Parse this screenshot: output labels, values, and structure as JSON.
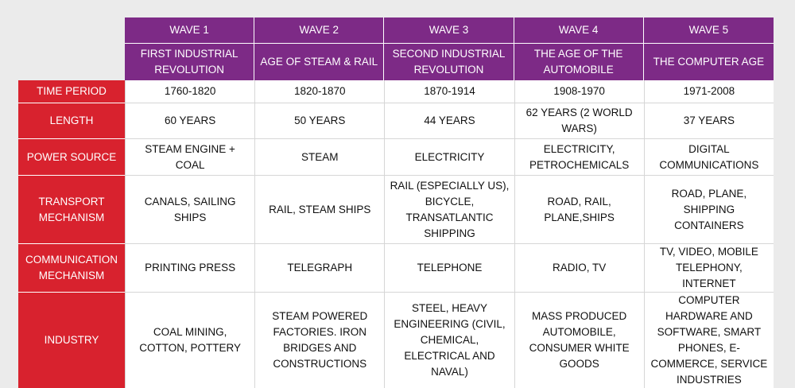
{
  "header": {
    "waves": [
      "WAVE 1",
      "WAVE 2",
      "WAVE 3",
      "WAVE 4",
      "WAVE 5"
    ],
    "eras": [
      "FIRST INDUSTRIAL REVOLUTION",
      "AGE OF STEAM & RAIL",
      "SECOND INDUSTRIAL REVOLUTION",
      "THE AGE OF THE AUTOMOBILE",
      "THE COMPUTER AGE"
    ]
  },
  "rows": [
    {
      "label": "TIME PERIOD",
      "cells": [
        "1760-1820",
        "1820-1870",
        "1870-1914",
        "1908-1970",
        "1971-2008"
      ]
    },
    {
      "label": "LENGTH",
      "cells": [
        "60 YEARS",
        "50 YEARS",
        "44 YEARS",
        "62 YEARS (2 WORLD WARS)",
        "37 YEARS"
      ]
    },
    {
      "label": "POWER SOURCE",
      "cells": [
        "STEAM ENGINE + COAL",
        "STEAM",
        "ELECTRICITY",
        "ELECTRICITY, PETROCHEMICALS",
        "DIGITAL COMMUNICATIONS"
      ]
    },
    {
      "label": "TRANSPORT MECHANISM",
      "cells": [
        "CANALS, SAILING SHIPS",
        "RAIL, STEAM SHIPS",
        "RAIL (ESPECIALLY US), BICYCLE, TRANSATLANTIC SHIPPING",
        "ROAD, RAIL, PLANE,SHIPS",
        "ROAD, PLANE, SHIPPING CONTAINERS"
      ]
    },
    {
      "label": "COMMUNICATION MECHANISM",
      "cells": [
        "PRINTING PRESS",
        "TELEGRAPH",
        "TELEPHONE",
        "RADIO, TV",
        "TV, VIDEO, MOBILE TELEPHONY, INTERNET"
      ]
    },
    {
      "label": "INDUSTRY",
      "cells": [
        "COAL MINING, COTTON, POTTERY",
        "STEAM POWERED FACTORIES. IRON BRIDGES AND CONSTRUCTIONS",
        "STEEL, HEAVY ENGINEERING (CIVIL, CHEMICAL, ELECTRICAL AND NAVAL)",
        "MASS PRODUCED AUTOMOBILE, CONSUMER WHITE GOODS",
        "COMPUTER HARDWARE AND SOFTWARE, SMART PHONES, E-COMMERCE, SERVICE INDUSTRIES"
      ]
    }
  ],
  "colors": {
    "header_purple": "#7d2a86",
    "rowhead_red": "#d8222e",
    "background": "#ebebeb",
    "cell_white": "#ffffff"
  }
}
